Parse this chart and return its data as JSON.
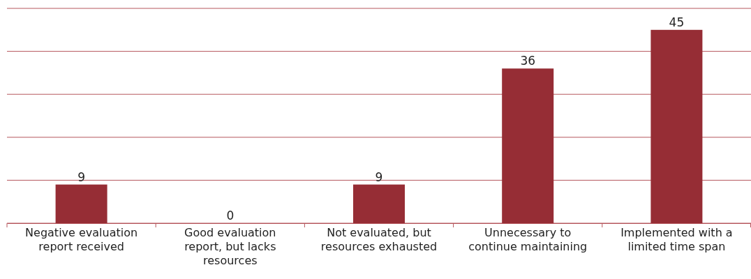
{
  "chart_data": {
    "type": "bar",
    "categories": [
      "Negative evaluation report received",
      "Good evaluation report, but lacks resources",
      "Not evaluated, but resources exhausted",
      "Unnecessary to continue maintaining",
      "Implemented with a limited time span"
    ],
    "values": [
      9,
      0,
      9,
      36,
      45
    ],
    "color": "#962d35",
    "ylim": [
      0,
      50
    ],
    "yticks": [
      {
        "value": 0,
        "label": null
      },
      {
        "value": 10,
        "label": null
      },
      {
        "value": 20,
        "label": null
      },
      {
        "value": 30,
        "label": null
      },
      {
        "value": 40,
        "label": null
      },
      {
        "value": 50,
        "label": null
      }
    ],
    "grid": "y",
    "tick_labels": "x",
    "data_labels": true
  }
}
